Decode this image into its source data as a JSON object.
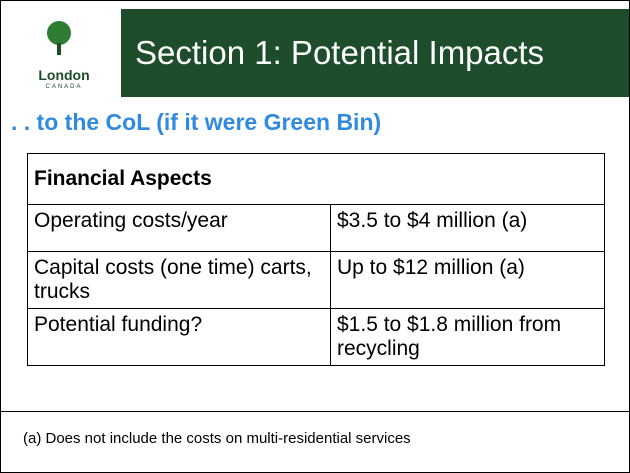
{
  "header": {
    "logo_text": "London",
    "logo_subtext": "CANADA",
    "title": "Section 1: Potential Impacts"
  },
  "subtitle": ". . to the CoL (if it were Green Bin)",
  "table": {
    "header": "Financial Aspects",
    "rows": [
      [
        "Operating costs/year",
        "$3.5 to $4 million (a)"
      ],
      [
        "Capital costs (one time) carts, trucks",
        "Up to $12 million (a)"
      ],
      [
        "Potential funding?",
        "$1.5 to $1.8 million from recycling"
      ]
    ]
  },
  "footnote": "(a) Does not include the costs on multi-residential services"
}
